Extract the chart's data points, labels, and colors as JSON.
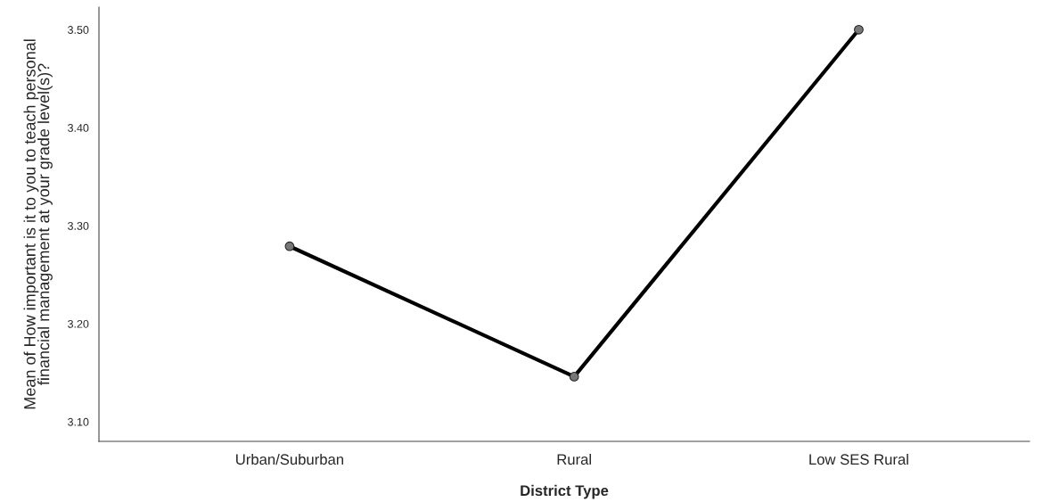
{
  "chart_data": {
    "type": "line",
    "xlabel": "District Type",
    "ylabel": "Mean of How important is it to you to teach personal\nfinancial management at your grade level(s)?",
    "categories": [
      "Urban/Suburban",
      "Rural",
      "Low SES Rural"
    ],
    "series": [
      {
        "color": "#000000",
        "values": [
          3.279,
          3.146,
          3.5
        ]
      }
    ],
    "ylim": [
      3.08,
      3.523
    ],
    "yticks": [
      {
        "value": 3.1,
        "label": "3.10"
      },
      {
        "value": 3.2,
        "label": "3.20"
      },
      {
        "value": 3.3,
        "label": "3.30"
      },
      {
        "value": 3.4,
        "label": "3.40"
      },
      {
        "value": 3.5,
        "label": "3.50"
      }
    ],
    "marker": "circle",
    "line_style": "solid"
  }
}
